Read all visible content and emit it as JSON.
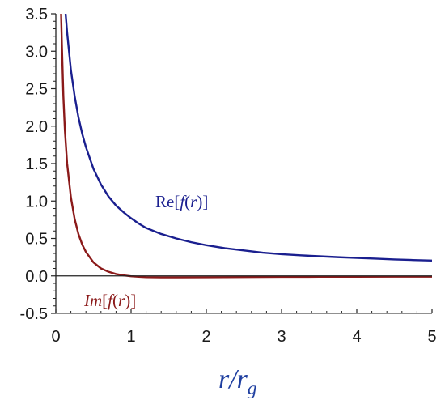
{
  "chart_data": {
    "type": "line",
    "xlabel": "r/r_g",
    "xlabel_parts": {
      "main": "r/r",
      "sub": "g"
    },
    "ylabel": "",
    "xlim": [
      0,
      5
    ],
    "ylim": [
      -0.5,
      3.5
    ],
    "x_ticks": [
      "0",
      "1",
      "2",
      "3",
      "4",
      "5"
    ],
    "y_ticks": [
      "-0.5",
      "0.0",
      "0.5",
      "1.0",
      "1.5",
      "2.0",
      "2.5",
      "3.0",
      "3.5"
    ],
    "grid": false,
    "series": [
      {
        "name": "Re[f(r)]",
        "label_parts": {
          "prefix": "Re",
          "lb": "[",
          "f": "f",
          "paren_open": "(",
          "r": "r",
          "paren_close": ")",
          "rb": "]"
        },
        "color": "#1a1f8f",
        "x": [
          0.13,
          0.15,
          0.18,
          0.2,
          0.25,
          0.3,
          0.35,
          0.4,
          0.5,
          0.6,
          0.7,
          0.8,
          0.9,
          1.0,
          1.1,
          1.2,
          1.4,
          1.6,
          1.8,
          2.0,
          2.25,
          2.5,
          2.75,
          3.0,
          3.25,
          3.5,
          3.75,
          4.0,
          4.25,
          4.5,
          4.75,
          5.0
        ],
        "y": [
          3.5,
          3.25,
          2.95,
          2.75,
          2.4,
          2.12,
          1.9,
          1.72,
          1.43,
          1.22,
          1.06,
          0.94,
          0.85,
          0.77,
          0.7,
          0.64,
          0.56,
          0.5,
          0.45,
          0.41,
          0.37,
          0.34,
          0.31,
          0.29,
          0.275,
          0.262,
          0.25,
          0.24,
          0.23,
          0.22,
          0.212,
          0.205
        ]
      },
      {
        "name": "Im[f(r)]",
        "label_parts": {
          "prefix": "Im",
          "lb": "[",
          "f": "f",
          "paren_open": "(",
          "r": "r",
          "paren_close": ")",
          "rb": "]"
        },
        "color": "#8b1a1a",
        "x": [
          0.07,
          0.08,
          0.1,
          0.12,
          0.15,
          0.2,
          0.25,
          0.3,
          0.35,
          0.4,
          0.5,
          0.6,
          0.7,
          0.8,
          0.9,
          1.0,
          1.1,
          1.2,
          1.4,
          1.6,
          2.0,
          2.5,
          3.0,
          3.5,
          4.0,
          4.5,
          5.0
        ],
        "y": [
          3.5,
          3.1,
          2.4,
          1.95,
          1.5,
          1.05,
          0.76,
          0.56,
          0.42,
          0.32,
          0.18,
          0.1,
          0.055,
          0.025,
          0.008,
          -0.005,
          -0.012,
          -0.017,
          -0.02,
          -0.02,
          -0.018,
          -0.015,
          -0.013,
          -0.012,
          -0.011,
          -0.01,
          -0.01
        ]
      }
    ]
  }
}
